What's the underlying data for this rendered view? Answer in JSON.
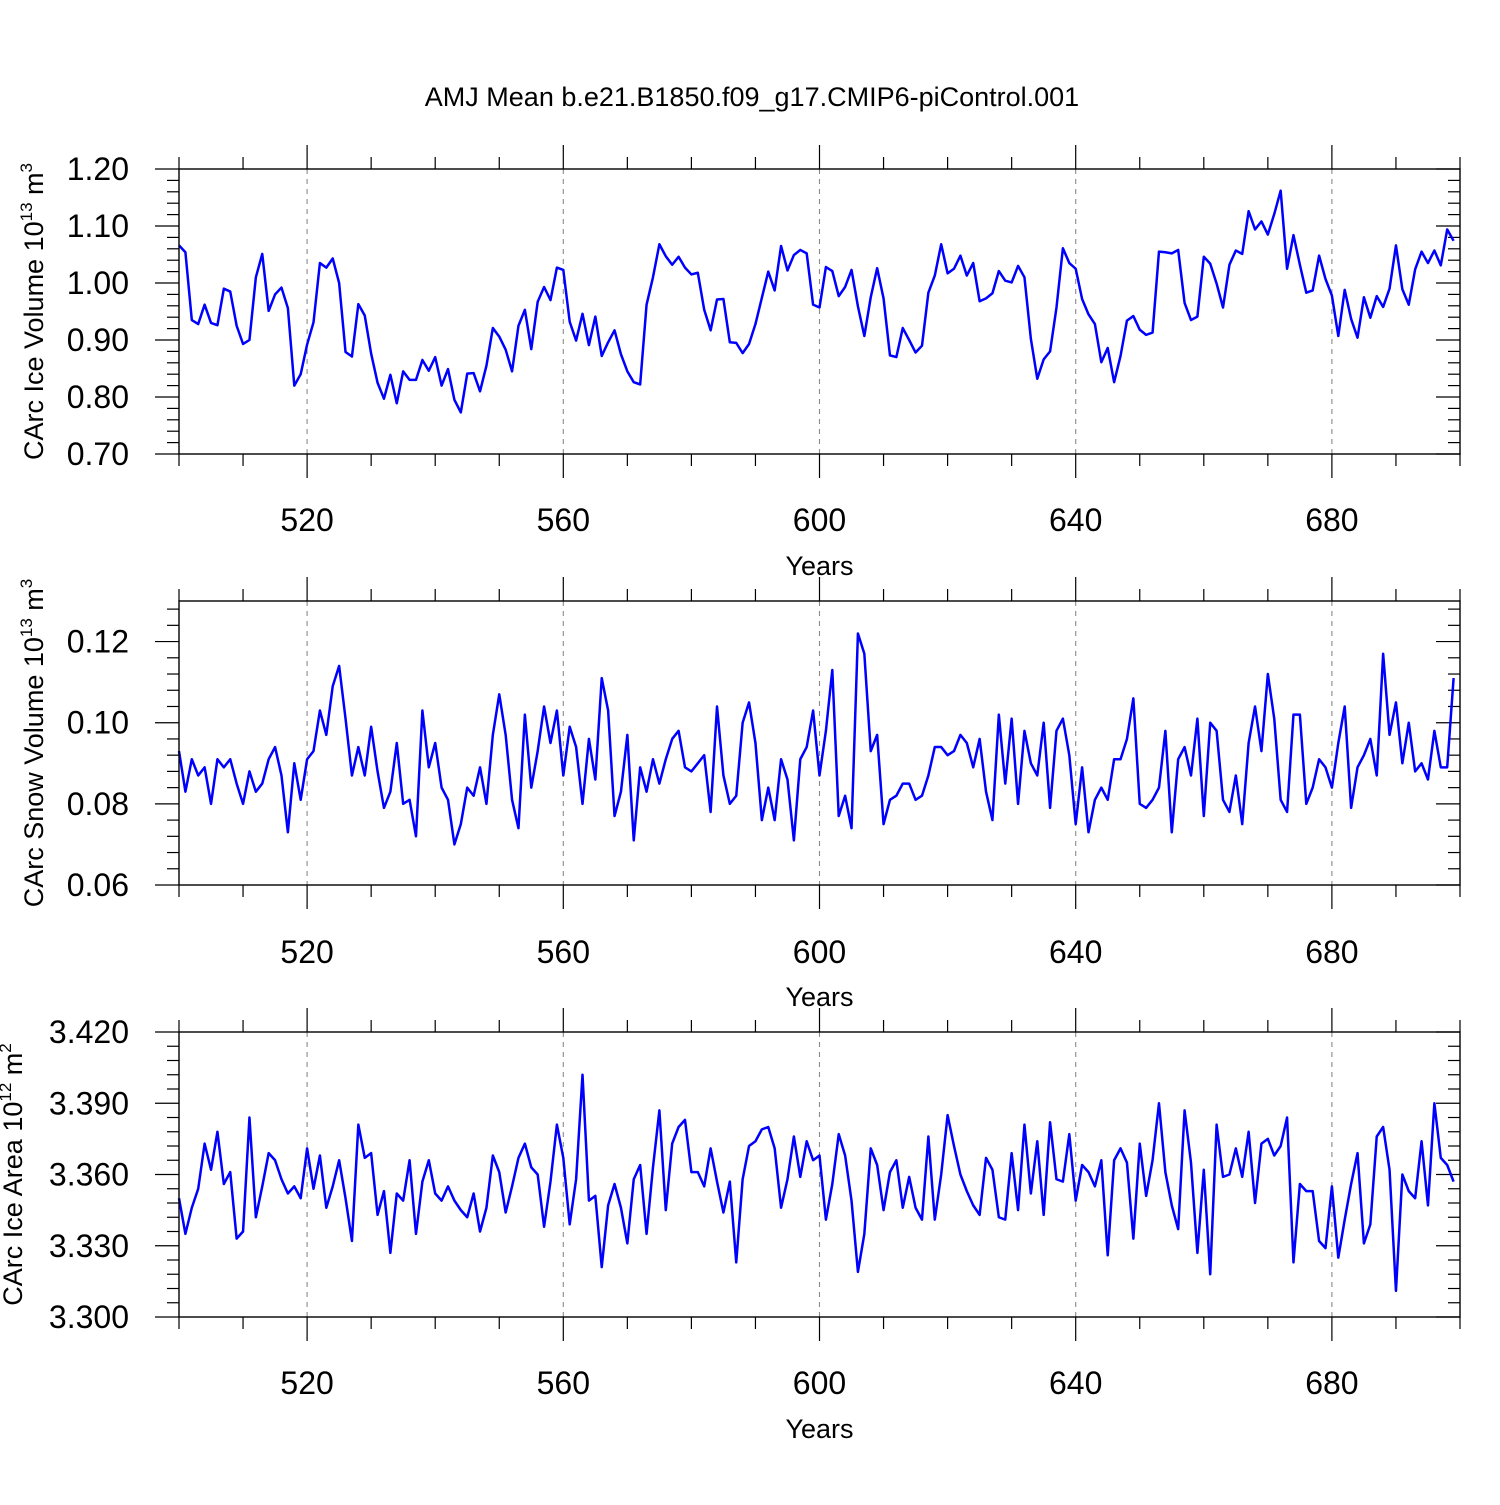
{
  "title": "AMJ Mean b.e21.B1850.f09_g17.CMIP6-piControl.001",
  "chart_data": [
    {
      "type": "line",
      "ylabel": {
        "main": "CArc Ice Volume 10",
        "sup1": "13",
        "mid": " m",
        "sup2": "3"
      },
      "xlabel": "Years",
      "xlim": [
        500,
        700
      ],
      "ylim": [
        0.7,
        1.2
      ],
      "x_ticks": [
        520,
        560,
        600,
        640,
        680
      ],
      "x_tick_labels": [
        "520",
        "560",
        "600",
        "640",
        "680"
      ],
      "y_ticks": [
        0.7,
        0.8,
        0.9,
        1.0,
        1.1,
        1.2
      ],
      "y_tick_labels": [
        "0.70",
        "0.80",
        "0.90",
        "1.00",
        "1.10",
        "1.20"
      ],
      "grid": "vertical dashed at major x ticks",
      "series": [
        {
          "name": "CArc Ice Volume",
          "color": "#0000ff",
          "x_start": 500,
          "x_step": 1,
          "values": [
            1.066,
            1.054,
            0.935,
            0.928,
            0.962,
            0.93,
            0.926,
            0.99,
            0.985,
            0.925,
            0.893,
            0.9,
            1.01,
            1.051,
            0.951,
            0.98,
            0.992,
            0.956,
            0.82,
            0.84,
            0.892,
            0.931,
            1.035,
            1.027,
            1.043,
            1.0,
            0.879,
            0.871,
            0.963,
            0.943,
            0.876,
            0.825,
            0.797,
            0.839,
            0.789,
            0.845,
            0.83,
            0.83,
            0.865,
            0.846,
            0.87,
            0.82,
            0.849,
            0.795,
            0.773,
            0.841,
            0.842,
            0.81,
            0.855,
            0.921,
            0.906,
            0.883,
            0.845,
            0.925,
            0.953,
            0.884,
            0.967,
            0.993,
            0.97,
            1.027,
            1.023,
            0.932,
            0.899,
            0.946,
            0.891,
            0.941,
            0.872,
            0.896,
            0.917,
            0.875,
            0.845,
            0.826,
            0.822,
            0.962,
            1.01,
            1.068,
            1.047,
            1.032,
            1.046,
            1.027,
            1.015,
            1.018,
            0.953,
            0.917,
            0.971,
            0.972,
            0.896,
            0.895,
            0.877,
            0.893,
            0.928,
            0.974,
            1.02,
            0.987,
            1.065,
            1.022,
            1.049,
            1.058,
            1.052,
            0.962,
            0.957,
            1.028,
            1.021,
            0.977,
            0.993,
            1.023,
            0.959,
            0.907,
            0.975,
            1.026,
            0.973,
            0.873,
            0.87,
            0.921,
            0.9,
            0.878,
            0.89,
            0.983,
            1.013,
            1.068,
            1.017,
            1.025,
            1.048,
            1.013,
            1.035,
            0.968,
            0.973,
            0.982,
            1.021,
            1.004,
            1.001,
            1.03,
            1.01,
            0.902,
            0.832,
            0.866,
            0.88,
            0.957,
            1.061,
            1.035,
            1.025,
            0.972,
            0.945,
            0.928,
            0.861,
            0.886,
            0.826,
            0.872,
            0.934,
            0.942,
            0.918,
            0.909,
            0.913,
            1.055,
            1.054,
            1.052,
            1.058,
            0.965,
            0.935,
            0.941,
            1.046,
            1.034,
            0.999,
            0.957,
            1.032,
            1.057,
            1.051,
            1.126,
            1.094,
            1.108,
            1.085,
            1.121,
            1.162,
            1.025,
            1.084,
            1.032,
            0.983,
            0.987,
            1.048,
            1.007,
            0.978,
            0.907,
            0.988,
            0.937,
            0.904,
            0.975,
            0.939,
            0.977,
            0.958,
            0.99,
            1.066,
            0.989,
            0.962,
            1.024,
            1.055,
            1.035,
            1.057,
            1.031,
            1.094,
            1.074
          ]
        }
      ]
    },
    {
      "type": "line",
      "ylabel": {
        "main": "CArc Snow Volume 10",
        "sup1": "13",
        "mid": " m",
        "sup2": "3"
      },
      "xlabel": "Years",
      "xlim": [
        500,
        700
      ],
      "ylim": [
        0.06,
        0.13
      ],
      "x_ticks": [
        520,
        560,
        600,
        640,
        680
      ],
      "x_tick_labels": [
        "520",
        "560",
        "600",
        "640",
        "680"
      ],
      "y_ticks": [
        0.06,
        0.08,
        0.1,
        0.12
      ],
      "y_tick_labels": [
        "0.06",
        "0.08",
        "0.10",
        "0.12"
      ],
      "grid": "vertical dashed at major x ticks",
      "series": [
        {
          "name": "CArc Snow Volume",
          "color": "#0000ff",
          "x_start": 500,
          "x_step": 1,
          "values": [
            0.093,
            0.083,
            0.091,
            0.087,
            0.089,
            0.08,
            0.091,
            0.089,
            0.091,
            0.085,
            0.08,
            0.088,
            0.083,
            0.085,
            0.091,
            0.094,
            0.087,
            0.073,
            0.09,
            0.081,
            0.091,
            0.093,
            0.103,
            0.097,
            0.109,
            0.114,
            0.101,
            0.087,
            0.094,
            0.087,
            0.099,
            0.088,
            0.079,
            0.083,
            0.095,
            0.08,
            0.081,
            0.072,
            0.103,
            0.089,
            0.095,
            0.084,
            0.081,
            0.07,
            0.075,
            0.084,
            0.082,
            0.089,
            0.08,
            0.097,
            0.107,
            0.097,
            0.081,
            0.074,
            0.102,
            0.084,
            0.093,
            0.104,
            0.095,
            0.103,
            0.087,
            0.099,
            0.094,
            0.08,
            0.096,
            0.086,
            0.111,
            0.103,
            0.077,
            0.083,
            0.097,
            0.071,
            0.089,
            0.083,
            0.091,
            0.085,
            0.091,
            0.096,
            0.098,
            0.089,
            0.088,
            0.09,
            0.092,
            0.078,
            0.104,
            0.087,
            0.08,
            0.082,
            0.1,
            0.105,
            0.095,
            0.076,
            0.084,
            0.076,
            0.091,
            0.086,
            0.071,
            0.091,
            0.094,
            0.103,
            0.087,
            0.098,
            0.113,
            0.077,
            0.082,
            0.074,
            0.122,
            0.117,
            0.093,
            0.097,
            0.075,
            0.081,
            0.082,
            0.085,
            0.085,
            0.081,
            0.082,
            0.087,
            0.094,
            0.094,
            0.092,
            0.093,
            0.097,
            0.095,
            0.089,
            0.096,
            0.083,
            0.076,
            0.102,
            0.085,
            0.101,
            0.08,
            0.098,
            0.09,
            0.087,
            0.1,
            0.079,
            0.098,
            0.101,
            0.092,
            0.075,
            0.089,
            0.073,
            0.081,
            0.084,
            0.081,
            0.091,
            0.091,
            0.096,
            0.106,
            0.08,
            0.079,
            0.081,
            0.084,
            0.098,
            0.073,
            0.091,
            0.094,
            0.087,
            0.101,
            0.077,
            0.1,
            0.098,
            0.081,
            0.078,
            0.087,
            0.075,
            0.095,
            0.104,
            0.093,
            0.112,
            0.101,
            0.081,
            0.078,
            0.102,
            0.102,
            0.08,
            0.084,
            0.091,
            0.089,
            0.084,
            0.095,
            0.104,
            0.079,
            0.089,
            0.092,
            0.096,
            0.087,
            0.117,
            0.097,
            0.105,
            0.09,
            0.1,
            0.088,
            0.09,
            0.086,
            0.098,
            0.089,
            0.089,
            0.111
          ]
        }
      ]
    },
    {
      "type": "line",
      "ylabel": {
        "main": "CArc Ice Area 10",
        "sup1": "12",
        "mid": " m",
        "sup2": "2"
      },
      "xlabel": "Years",
      "xlim": [
        500,
        700
      ],
      "ylim": [
        3.3,
        3.42
      ],
      "x_ticks": [
        520,
        560,
        600,
        640,
        680
      ],
      "x_tick_labels": [
        "520",
        "560",
        "600",
        "640",
        "680"
      ],
      "y_ticks": [
        3.3,
        3.33,
        3.36,
        3.39,
        3.42
      ],
      "y_tick_labels": [
        "3.300",
        "3.330",
        "3.360",
        "3.390",
        "3.420"
      ],
      "grid": "vertical dashed at major x ticks",
      "series": [
        {
          "name": "CArc Ice Area",
          "color": "#0000ff",
          "x_start": 500,
          "x_step": 1,
          "values": [
            3.35,
            3.335,
            3.346,
            3.354,
            3.373,
            3.362,
            3.378,
            3.356,
            3.361,
            3.333,
            3.336,
            3.384,
            3.342,
            3.355,
            3.369,
            3.366,
            3.358,
            3.352,
            3.355,
            3.35,
            3.371,
            3.354,
            3.368,
            3.346,
            3.355,
            3.366,
            3.35,
            3.332,
            3.381,
            3.367,
            3.369,
            3.343,
            3.353,
            3.327,
            3.352,
            3.349,
            3.366,
            3.335,
            3.357,
            3.366,
            3.352,
            3.349,
            3.355,
            3.349,
            3.345,
            3.342,
            3.352,
            3.336,
            3.346,
            3.368,
            3.361,
            3.344,
            3.355,
            3.367,
            3.373,
            3.363,
            3.36,
            3.338,
            3.357,
            3.381,
            3.367,
            3.339,
            3.358,
            3.402,
            3.349,
            3.351,
            3.321,
            3.347,
            3.356,
            3.346,
            3.331,
            3.358,
            3.364,
            3.335,
            3.363,
            3.387,
            3.345,
            3.373,
            3.38,
            3.383,
            3.361,
            3.361,
            3.355,
            3.371,
            3.357,
            3.344,
            3.357,
            3.323,
            3.358,
            3.372,
            3.374,
            3.379,
            3.38,
            3.371,
            3.346,
            3.358,
            3.376,
            3.359,
            3.374,
            3.366,
            3.368,
            3.341,
            3.356,
            3.377,
            3.368,
            3.349,
            3.319,
            3.335,
            3.371,
            3.364,
            3.345,
            3.361,
            3.366,
            3.346,
            3.359,
            3.346,
            3.341,
            3.376,
            3.341,
            3.36,
            3.385,
            3.372,
            3.36,
            3.353,
            3.347,
            3.343,
            3.367,
            3.362,
            3.342,
            3.341,
            3.369,
            3.345,
            3.381,
            3.352,
            3.374,
            3.343,
            3.382,
            3.358,
            3.357,
            3.377,
            3.349,
            3.364,
            3.361,
            3.355,
            3.366,
            3.326,
            3.366,
            3.371,
            3.365,
            3.333,
            3.373,
            3.351,
            3.366,
            3.39,
            3.361,
            3.347,
            3.337,
            3.387,
            3.365,
            3.327,
            3.362,
            3.318,
            3.381,
            3.359,
            3.36,
            3.371,
            3.359,
            3.378,
            3.348,
            3.373,
            3.375,
            3.368,
            3.372,
            3.384,
            3.323,
            3.356,
            3.353,
            3.353,
            3.332,
            3.329,
            3.355,
            3.325,
            3.341,
            3.356,
            3.369,
            3.331,
            3.339,
            3.376,
            3.38,
            3.362,
            3.311,
            3.36,
            3.353,
            3.35,
            3.374,
            3.347,
            3.39,
            3.367,
            3.364,
            3.357
          ]
        }
      ]
    }
  ]
}
